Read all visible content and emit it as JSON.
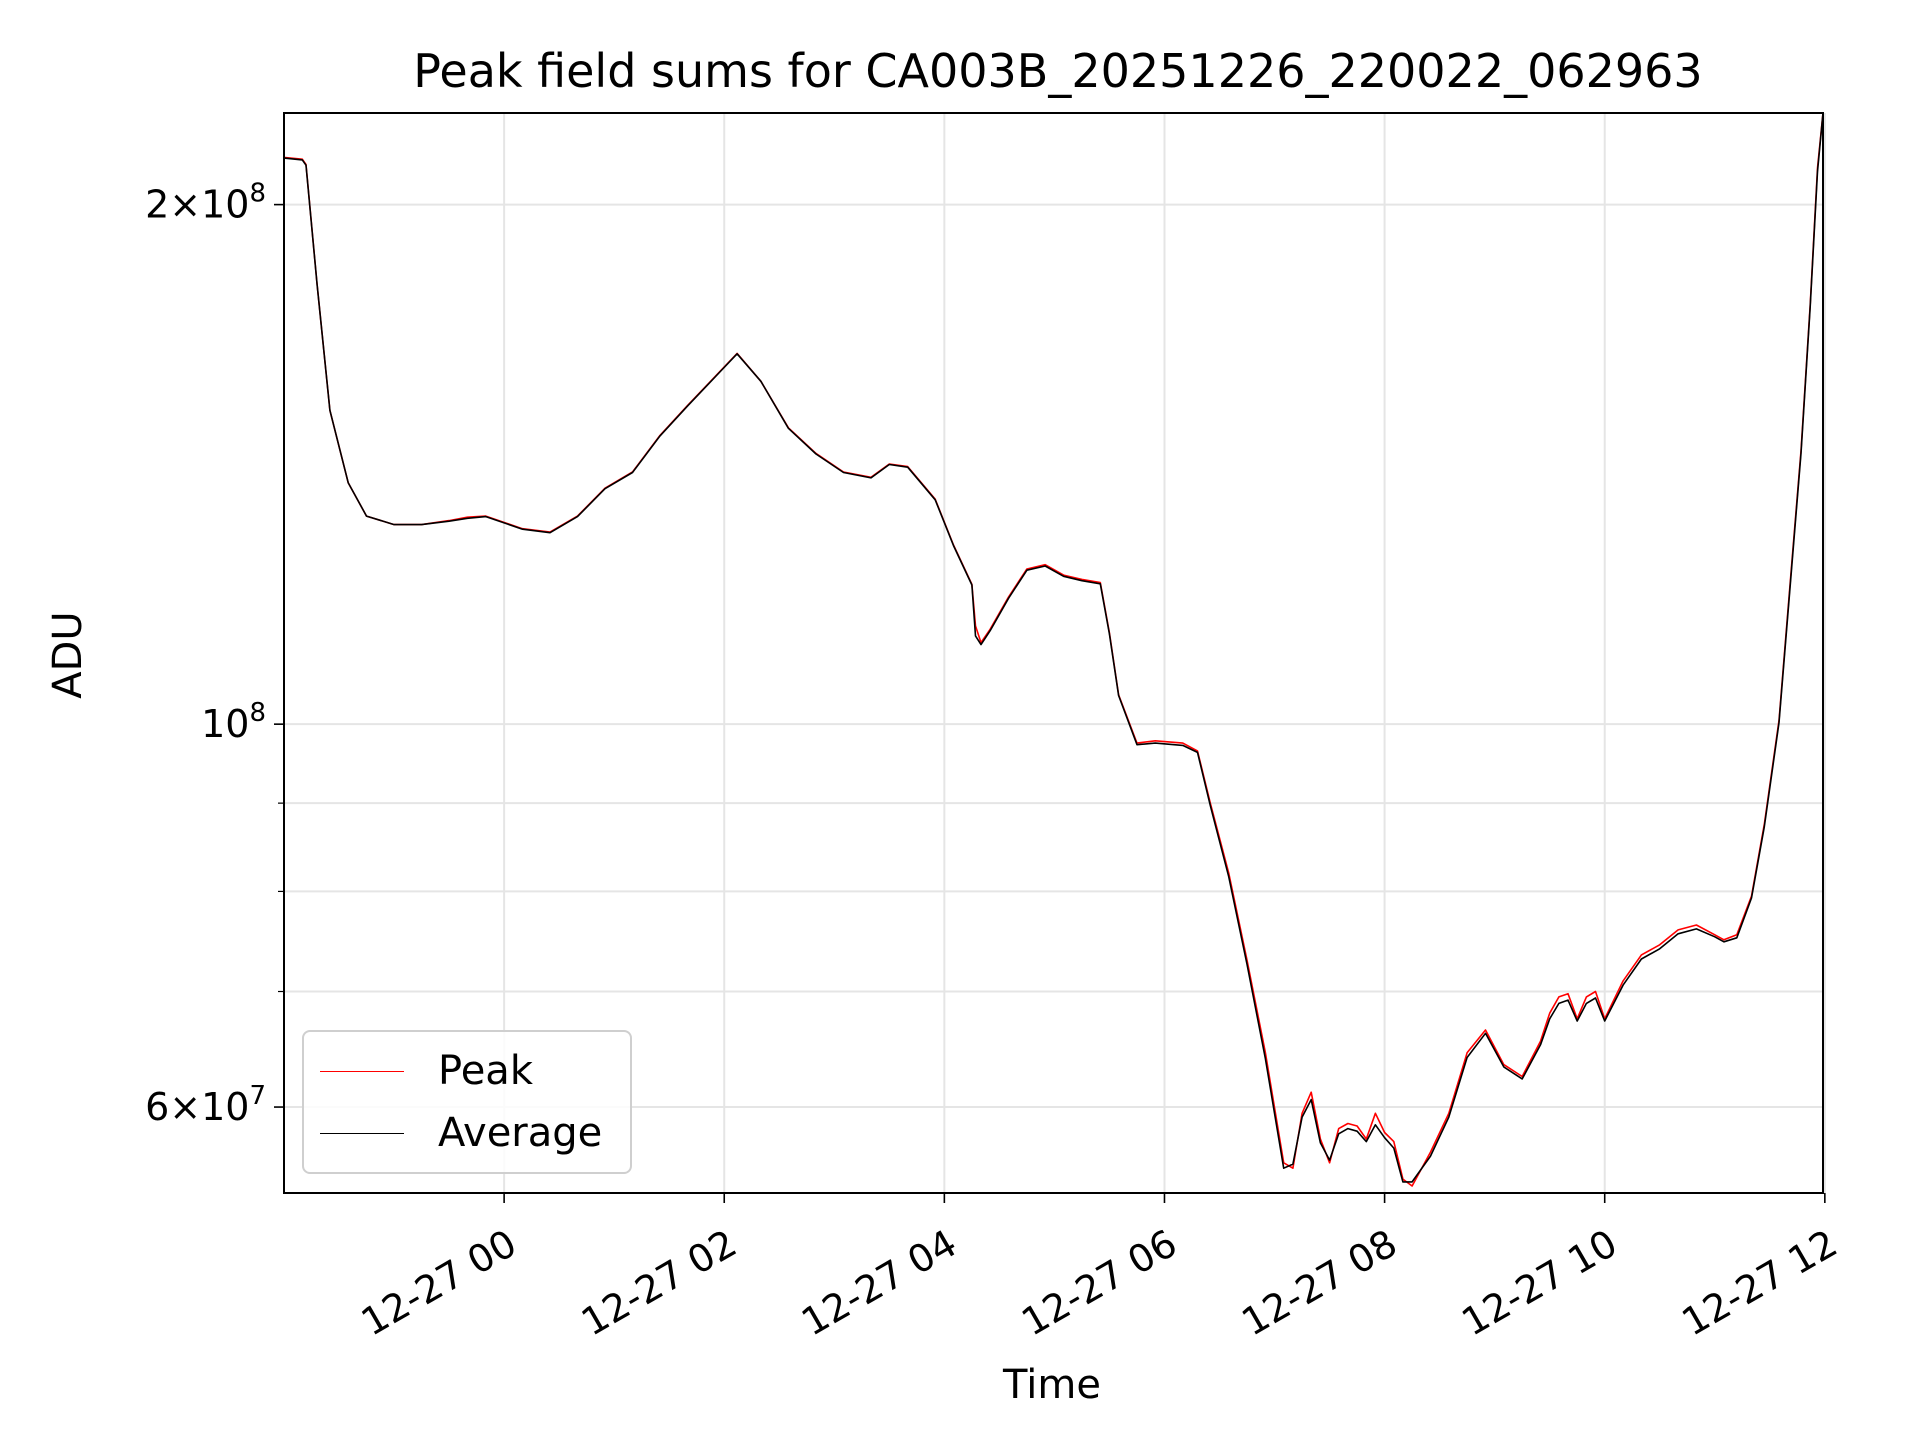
{
  "chart_data": {
    "type": "line",
    "title": "Peak field sums for CA003B_20251226_220022_062963",
    "xlabel": "Time",
    "ylabel": "ADU",
    "x_axis": {
      "kind": "time",
      "range": [
        "2025-12-26 22:00",
        "2025-12-27 11:59"
      ],
      "tick_labels": [
        "12-27 00",
        "12-27 02",
        "12-27 04",
        "12-27 06",
        "12-27 08",
        "12-27 10",
        "12-27 12"
      ],
      "ticks": [
        "2025-12-27 00:00",
        "2025-12-27 02:00",
        "2025-12-27 04:00",
        "2025-12-27 06:00",
        "2025-12-27 08:00",
        "2025-12-27 10:00",
        "2025-12-27 12:00"
      ]
    },
    "y_axis": {
      "scale": "log",
      "range": [
        53500000,
        226000000
      ],
      "tick_labels": [
        {
          "value": 200000000,
          "mantissa": "2",
          "exp": "8"
        },
        {
          "value": 100000000,
          "mantissa": "",
          "exp": "8"
        },
        {
          "value": 60000000,
          "mantissa": "6",
          "exp": "7"
        }
      ],
      "minor_ticks": [
        70000000,
        80000000,
        90000000
      ]
    },
    "grid": true,
    "legend_position": "lower-left",
    "series": [
      {
        "name": "Peak",
        "color": "#ff0000",
        "x": [
          "2025-12-26 22:00",
          "2025-12-26 22:10",
          "2025-12-26 22:12",
          "2025-12-26 22:18",
          "2025-12-26 22:25",
          "2025-12-26 22:35",
          "2025-12-26 22:45",
          "2025-12-26 23:00",
          "2025-12-26 23:15",
          "2025-12-26 23:30",
          "2025-12-26 23:40",
          "2025-12-26 23:50",
          "2025-12-27 00:10",
          "2025-12-27 00:25",
          "2025-12-27 00:40",
          "2025-12-27 00:55",
          "2025-12-27 01:10",
          "2025-12-27 01:25",
          "2025-12-27 01:40",
          "2025-12-27 01:55",
          "2025-12-27 02:07",
          "2025-12-27 02:20",
          "2025-12-27 02:35",
          "2025-12-27 02:50",
          "2025-12-27 03:05",
          "2025-12-27 03:20",
          "2025-12-27 03:30",
          "2025-12-27 03:40",
          "2025-12-27 03:55",
          "2025-12-27 04:05",
          "2025-12-27 04:15",
          "2025-12-27 04:17",
          "2025-12-27 04:20",
          "2025-12-27 04:25",
          "2025-12-27 04:35",
          "2025-12-27 04:45",
          "2025-12-27 04:55",
          "2025-12-27 05:05",
          "2025-12-27 05:15",
          "2025-12-27 05:25",
          "2025-12-27 05:30",
          "2025-12-27 05:35",
          "2025-12-27 05:45",
          "2025-12-27 05:55",
          "2025-12-27 06:10",
          "2025-12-27 06:18",
          "2025-12-27 06:25",
          "2025-12-27 06:35",
          "2025-12-27 06:45",
          "2025-12-27 06:55",
          "2025-12-27 07:05",
          "2025-12-27 07:10",
          "2025-12-27 07:15",
          "2025-12-27 07:20",
          "2025-12-27 07:25",
          "2025-12-27 07:30",
          "2025-12-27 07:35",
          "2025-12-27 07:40",
          "2025-12-27 07:45",
          "2025-12-27 07:50",
          "2025-12-27 07:55",
          "2025-12-27 08:00",
          "2025-12-27 08:05",
          "2025-12-27 08:10",
          "2025-12-27 08:15",
          "2025-12-27 08:25",
          "2025-12-27 08:35",
          "2025-12-27 08:45",
          "2025-12-27 08:55",
          "2025-12-27 09:05",
          "2025-12-27 09:15",
          "2025-12-27 09:25",
          "2025-12-27 09:30",
          "2025-12-27 09:35",
          "2025-12-27 09:40",
          "2025-12-27 09:45",
          "2025-12-27 09:50",
          "2025-12-27 09:55",
          "2025-12-27 10:00",
          "2025-12-27 10:10",
          "2025-12-27 10:20",
          "2025-12-27 10:30",
          "2025-12-27 10:40",
          "2025-12-27 10:50",
          "2025-12-27 11:00",
          "2025-12-27 11:05",
          "2025-12-27 11:12",
          "2025-12-27 11:20",
          "2025-12-27 11:27",
          "2025-12-27 11:35",
          "2025-12-27 11:42",
          "2025-12-27 11:47",
          "2025-12-27 11:52",
          "2025-12-27 11:56",
          "2025-12-27 11:59"
        ],
        "y": [
          213000000,
          212500000,
          211000000,
          180000000,
          152000000,
          138000000,
          132000000,
          130500000,
          130500000,
          131200000,
          131800000,
          132000000,
          129800000,
          129200000,
          132000000,
          137000000,
          140000000,
          147000000,
          153000000,
          159000000,
          164000000,
          158000000,
          148500000,
          143500000,
          140000000,
          139000000,
          141500000,
          141000000,
          135000000,
          127000000,
          120500000,
          114000000,
          111500000,
          113500000,
          118500000,
          123000000,
          123700000,
          122000000,
          121300000,
          120800000,
          113000000,
          104000000,
          97500000,
          97800000,
          97500000,
          96500000,
          90000000,
          82000000,
          73000000,
          64500000,
          55700000,
          55300000,
          59500000,
          61200000,
          57500000,
          55700000,
          58300000,
          58700000,
          58500000,
          57500000,
          59500000,
          58000000,
          57300000,
          54500000,
          54000000,
          56500000,
          59500000,
          64500000,
          66500000,
          63500000,
          62500000,
          65500000,
          68000000,
          69500000,
          69800000,
          67500000,
          69500000,
          70000000,
          67500000,
          71000000,
          73500000,
          74500000,
          76000000,
          76500000,
          75500000,
          75000000,
          75500000,
          79500000,
          87500000,
          100500000,
          124000000,
          144000000,
          175000000,
          210000000,
          226000000
        ]
      },
      {
        "name": "Average",
        "color": "#000000",
        "x": [
          "2025-12-26 22:00",
          "2025-12-26 22:10",
          "2025-12-26 22:12",
          "2025-12-26 22:18",
          "2025-12-26 22:25",
          "2025-12-26 22:35",
          "2025-12-26 22:45",
          "2025-12-26 23:00",
          "2025-12-26 23:15",
          "2025-12-26 23:30",
          "2025-12-26 23:40",
          "2025-12-26 23:50",
          "2025-12-27 00:10",
          "2025-12-27 00:25",
          "2025-12-27 00:40",
          "2025-12-27 00:55",
          "2025-12-27 01:10",
          "2025-12-27 01:25",
          "2025-12-27 01:40",
          "2025-12-27 01:55",
          "2025-12-27 02:07",
          "2025-12-27 02:20",
          "2025-12-27 02:35",
          "2025-12-27 02:50",
          "2025-12-27 03:05",
          "2025-12-27 03:20",
          "2025-12-27 03:30",
          "2025-12-27 03:40",
          "2025-12-27 03:55",
          "2025-12-27 04:05",
          "2025-12-27 04:15",
          "2025-12-27 04:17",
          "2025-12-27 04:20",
          "2025-12-27 04:25",
          "2025-12-27 04:35",
          "2025-12-27 04:45",
          "2025-12-27 04:55",
          "2025-12-27 05:05",
          "2025-12-27 05:15",
          "2025-12-27 05:25",
          "2025-12-27 05:30",
          "2025-12-27 05:35",
          "2025-12-27 05:45",
          "2025-12-27 05:55",
          "2025-12-27 06:10",
          "2025-12-27 06:18",
          "2025-12-27 06:25",
          "2025-12-27 06:35",
          "2025-12-27 06:45",
          "2025-12-27 06:55",
          "2025-12-27 07:05",
          "2025-12-27 07:10",
          "2025-12-27 07:15",
          "2025-12-27 07:20",
          "2025-12-27 07:25",
          "2025-12-27 07:30",
          "2025-12-27 07:35",
          "2025-12-27 07:40",
          "2025-12-27 07:45",
          "2025-12-27 07:50",
          "2025-12-27 07:55",
          "2025-12-27 08:00",
          "2025-12-27 08:05",
          "2025-12-27 08:10",
          "2025-12-27 08:15",
          "2025-12-27 08:25",
          "2025-12-27 08:35",
          "2025-12-27 08:45",
          "2025-12-27 08:55",
          "2025-12-27 09:05",
          "2025-12-27 09:15",
          "2025-12-27 09:25",
          "2025-12-27 09:30",
          "2025-12-27 09:35",
          "2025-12-27 09:40",
          "2025-12-27 09:45",
          "2025-12-27 09:50",
          "2025-12-27 09:55",
          "2025-12-27 10:00",
          "2025-12-27 10:10",
          "2025-12-27 10:20",
          "2025-12-27 10:30",
          "2025-12-27 10:40",
          "2025-12-27 10:50",
          "2025-12-27 11:00",
          "2025-12-27 11:05",
          "2025-12-27 11:12",
          "2025-12-27 11:20",
          "2025-12-27 11:27",
          "2025-12-27 11:35",
          "2025-12-27 11:42",
          "2025-12-27 11:47",
          "2025-12-27 11:52",
          "2025-12-27 11:56",
          "2025-12-27 11:59"
        ],
        "y": [
          212800000,
          212300000,
          210800000,
          180000000,
          152000000,
          138000000,
          132000000,
          130500000,
          130500000,
          131100000,
          131600000,
          131900000,
          129700000,
          129100000,
          131900000,
          136900000,
          139900000,
          146900000,
          152900000,
          158900000,
          163900000,
          158000000,
          148400000,
          143400000,
          139900000,
          138900000,
          141400000,
          140900000,
          134900000,
          126900000,
          120400000,
          112500000,
          111200000,
          113300000,
          118300000,
          122800000,
          123500000,
          121800000,
          121100000,
          120600000,
          112800000,
          103900000,
          97300000,
          97500000,
          97200000,
          96300000,
          89700000,
          81600000,
          72600000,
          64000000,
          55300000,
          55600000,
          59200000,
          60600000,
          57200000,
          55900000,
          57900000,
          58300000,
          58100000,
          57300000,
          58600000,
          57600000,
          56800000,
          54300000,
          54300000,
          56200000,
          59200000,
          64100000,
          66200000,
          63300000,
          62300000,
          65200000,
          67500000,
          68900000,
          69200000,
          67300000,
          68900000,
          69400000,
          67300000,
          70600000,
          73100000,
          74100000,
          75600000,
          76100000,
          75300000,
          74800000,
          75200000,
          79300000,
          87200000,
          100200000,
          123500000,
          143500000,
          174500000,
          209000000,
          226000000
        ]
      }
    ]
  }
}
